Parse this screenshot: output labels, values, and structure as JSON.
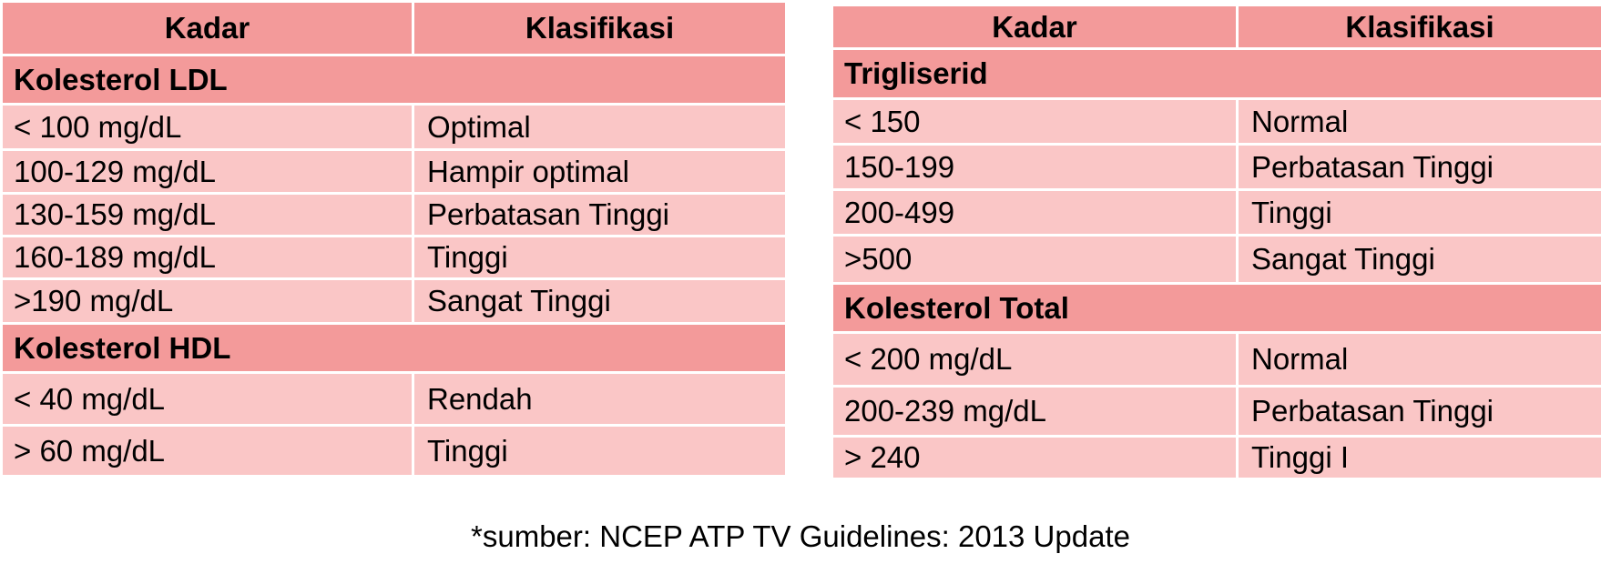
{
  "left_table": {
    "headers": [
      "Kadar",
      "Klasifikasi"
    ],
    "sections": [
      {
        "title": "Kolesterol LDL",
        "rows": [
          [
            "< 100 mg/dL",
            "Optimal"
          ],
          [
            "100-129 mg/dL",
            "Hampir optimal"
          ],
          [
            "130-159 mg/dL",
            "Perbatasan Tinggi"
          ],
          [
            "160-189 mg/dL",
            "Tinggi"
          ],
          [
            ">190 mg/dL",
            "Sangat Tinggi"
          ]
        ]
      },
      {
        "title": "Kolesterol HDL",
        "rows": [
          [
            "< 40 mg/dL",
            "Rendah"
          ],
          [
            "> 60 mg/dL",
            "Tinggi"
          ]
        ]
      }
    ]
  },
  "right_table": {
    "headers": [
      "Kadar",
      "Klasifikasi"
    ],
    "sections": [
      {
        "title": "Trigliserid",
        "rows": [
          [
            "< 150",
            "Normal"
          ],
          [
            "150-199",
            "Perbatasan Tinggi"
          ],
          [
            "200-499",
            "Tinggi"
          ],
          [
            ">500",
            "Sangat Tinggi"
          ]
        ]
      },
      {
        "title": "Kolesterol Total",
        "rows": [
          [
            "< 200 mg/dL",
            "Normal"
          ],
          [
            "200-239 mg/dL",
            "Perbatasan Tinggi"
          ],
          [
            "> 240",
            "Tinggi I"
          ]
        ]
      }
    ]
  },
  "footnote": "*sumber: NCEP ATP TV Guidelines: 2013 Update"
}
